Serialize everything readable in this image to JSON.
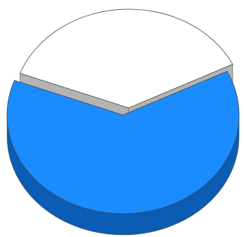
{
  "chart_data": {
    "type": "pie",
    "title": "",
    "style": "3d-exploded",
    "grid": false,
    "legend": "none",
    "slices": [
      {
        "value": 63,
        "color": "#1a8cff",
        "side_color": "#0a5cb5",
        "exploded": false
      },
      {
        "value": 37,
        "color": "#ffffff",
        "side_color": "#b4b4b4",
        "exploded": true
      }
    ]
  }
}
